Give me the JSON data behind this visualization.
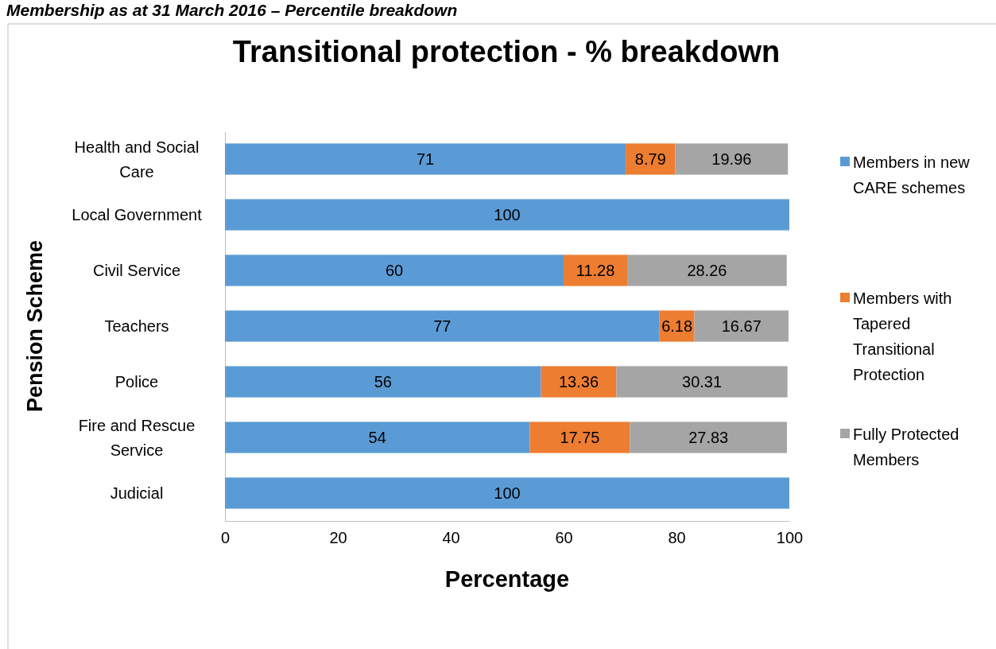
{
  "chart_data": {
    "type": "bar",
    "orientation": "horizontal",
    "stacked": true,
    "title": "Transitional protection  - % breakdown",
    "annotations": [
      "Membership as at 31 March 2016 – Percentile breakdown"
    ],
    "xlabel": "Percentage",
    "ylabel": "Pension Scheme",
    "categories": [
      "Health and Social Care",
      "Local Government",
      "Civil Service",
      "Teachers",
      "Police",
      "Fire and Rescue Service",
      "Judicial"
    ],
    "series": [
      {
        "name": "Members in new CARE schemes",
        "color": "#5b9bd5",
        "values": [
          71,
          100,
          60,
          77,
          56,
          54,
          100
        ]
      },
      {
        "name": "Members with Tapered Transitional Protection",
        "color": "#ed7d31",
        "values": [
          8.79,
          null,
          11.28,
          6.18,
          13.36,
          17.75,
          null
        ]
      },
      {
        "name": "Fully Protected Members",
        "color": "#a5a5a5",
        "values": [
          19.96,
          null,
          28.26,
          16.67,
          30.31,
          27.83,
          null
        ]
      }
    ],
    "xlim": [
      0,
      100
    ],
    "xticks": [
      0,
      20,
      40,
      60,
      80,
      100
    ],
    "data_labels": true,
    "legend": "right",
    "grid": false
  }
}
